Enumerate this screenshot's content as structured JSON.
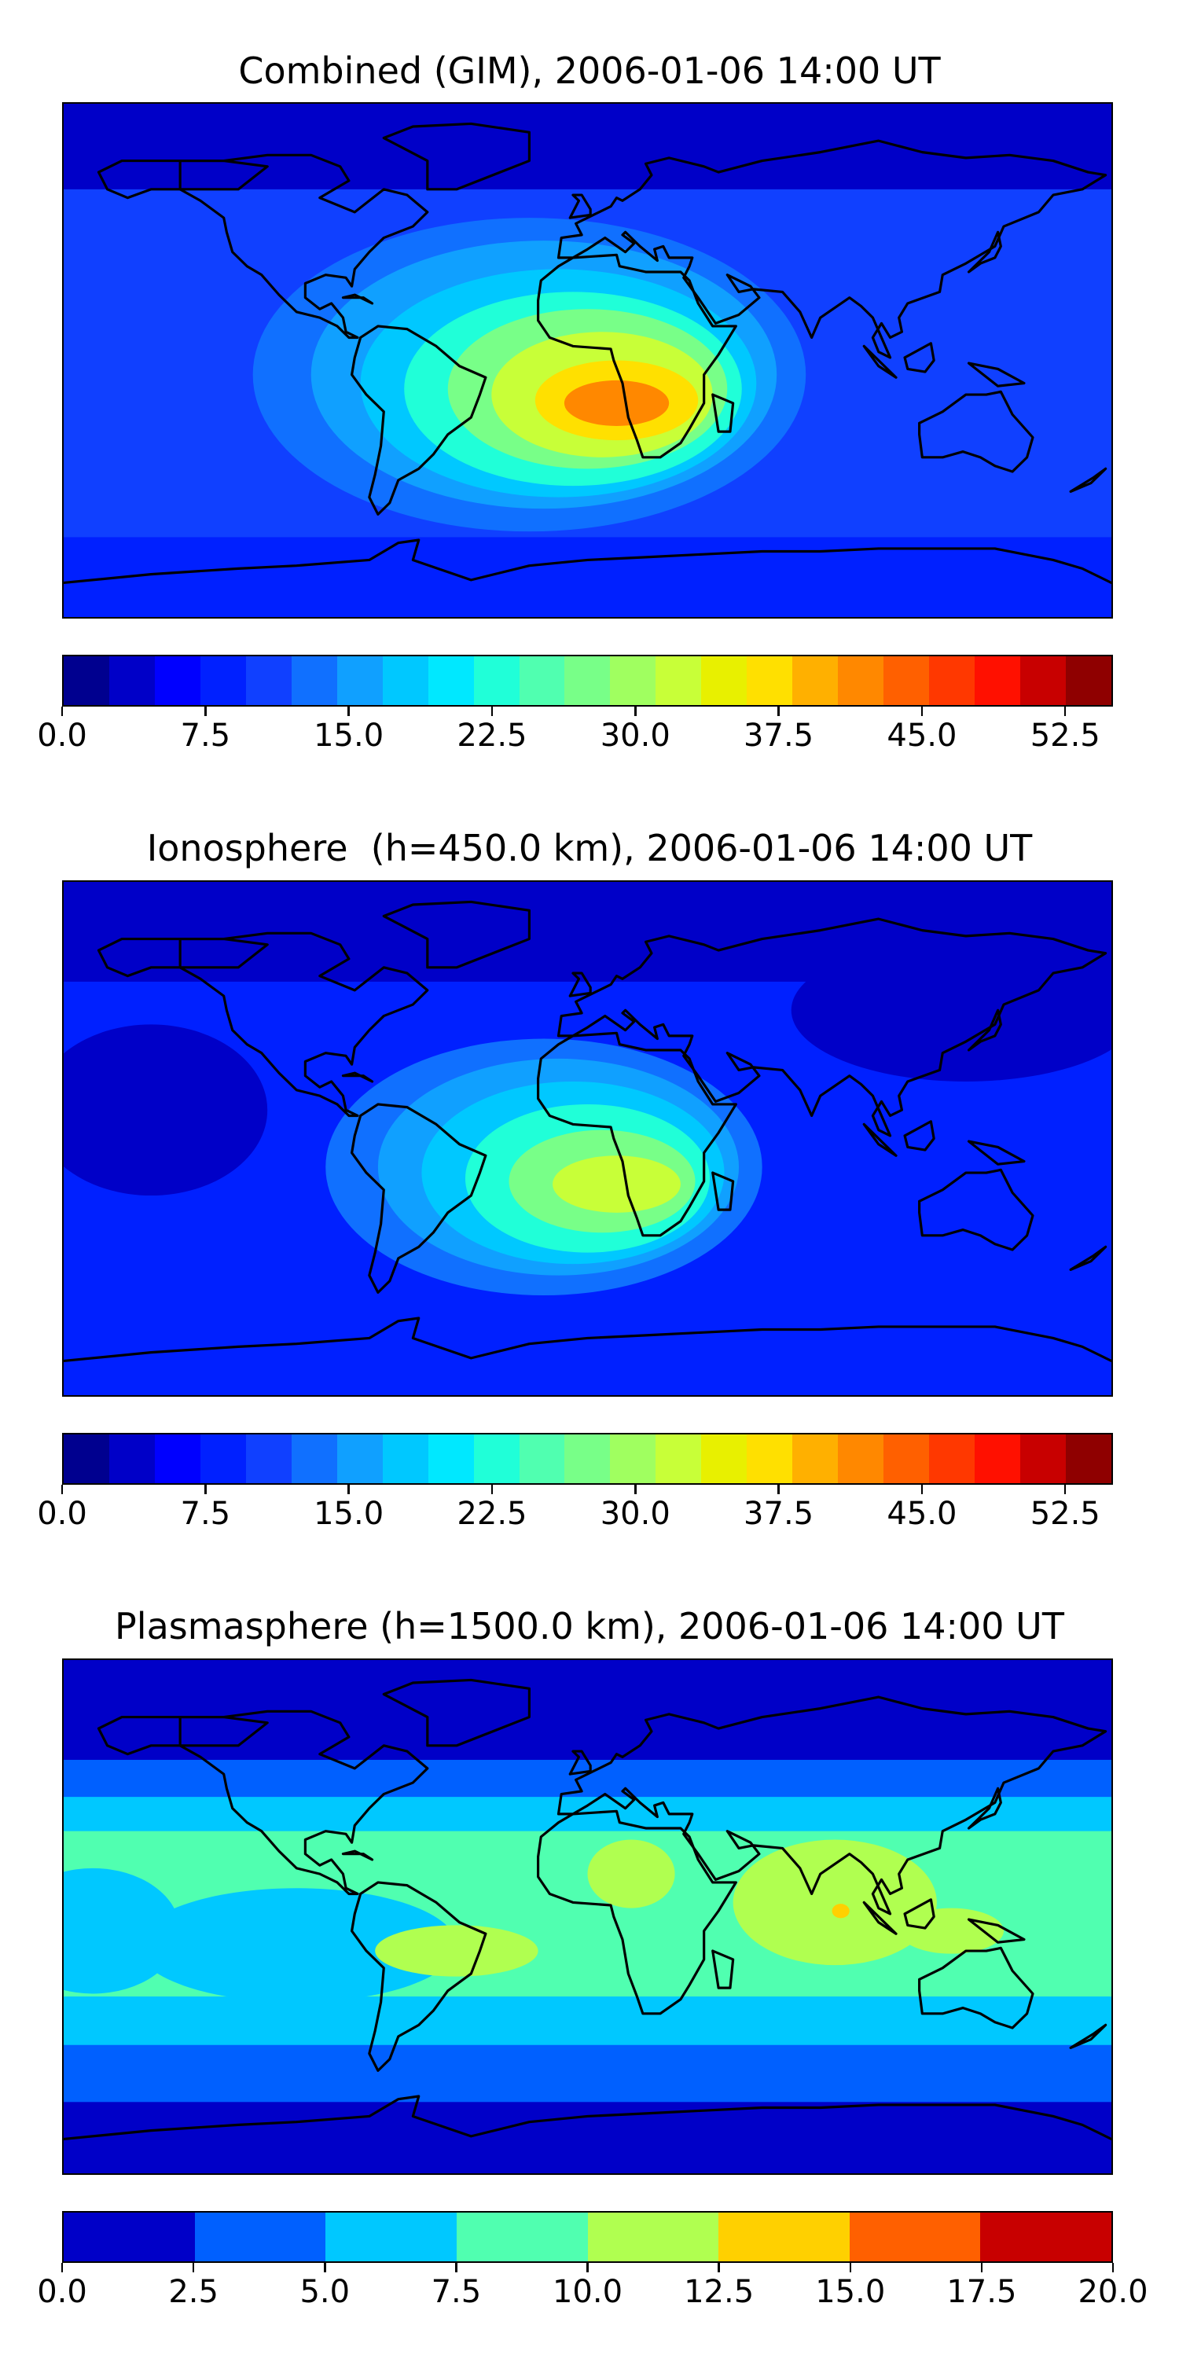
{
  "panels": [
    {
      "title": "Combined (GIM), 2006-01-06 14:00 UT",
      "colorbar": {
        "min": 0.0,
        "max": 55.0,
        "step": 2.5,
        "colors": [
          "#00008f",
          "#0000c8",
          "#0000ff",
          "#0020ff",
          "#1040ff",
          "#1070ff",
          "#10a0ff",
          "#00c8ff",
          "#00e8ff",
          "#20ffd8",
          "#50ffb0",
          "#78ff88",
          "#a0ff60",
          "#c8ff38",
          "#e8f000",
          "#ffe000",
          "#ffb000",
          "#ff8800",
          "#ff6000",
          "#ff3800",
          "#ff1000",
          "#c80000",
          "#8f0000"
        ],
        "tick_labels": [
          "0.0",
          "7.5",
          "15.0",
          "22.5",
          "30.0",
          "37.5",
          "45.0",
          "52.5"
        ],
        "tick_values": [
          0.0,
          7.5,
          15.0,
          22.5,
          30.0,
          37.5,
          45.0,
          52.5
        ]
      },
      "map": {
        "background": "#1040ff",
        "layers": [
          {
            "kind": "band",
            "lat": [
              60,
              90
            ],
            "color": "#0000c8"
          },
          {
            "kind": "band",
            "lat": [
              -90,
              -62
            ],
            "color": "#0020ff"
          },
          {
            "kind": "blob",
            "lon": -20,
            "lat": -5,
            "rx": 95,
            "ry": 55,
            "color": "#1070ff"
          },
          {
            "kind": "blob",
            "lon": -15,
            "lat": -5,
            "rx": 80,
            "ry": 47,
            "color": "#10a0ff"
          },
          {
            "kind": "blob",
            "lon": -10,
            "lat": -8,
            "rx": 68,
            "ry": 40,
            "color": "#00c8ff"
          },
          {
            "kind": "blob",
            "lon": -5,
            "lat": -10,
            "rx": 58,
            "ry": 34,
            "color": "#20ffd8"
          },
          {
            "kind": "blob",
            "lon": 0,
            "lat": -10,
            "rx": 48,
            "ry": 28,
            "color": "#78ff88"
          },
          {
            "kind": "blob",
            "lon": 5,
            "lat": -12,
            "rx": 38,
            "ry": 22,
            "color": "#c8ff38"
          },
          {
            "kind": "blob",
            "lon": 10,
            "lat": -14,
            "rx": 28,
            "ry": 14,
            "color": "#ffe000"
          },
          {
            "kind": "blob",
            "lon": 10,
            "lat": -15,
            "rx": 18,
            "ry": 8,
            "color": "#ff8800"
          }
        ]
      }
    },
    {
      "title": "Ionosphere  (h=450.0 km), 2006-01-06 14:00 UT",
      "colorbar": {
        "min": 0.0,
        "max": 55.0,
        "step": 2.5,
        "colors": [
          "#00008f",
          "#0000c8",
          "#0000ff",
          "#0020ff",
          "#1040ff",
          "#1070ff",
          "#10a0ff",
          "#00c8ff",
          "#00e8ff",
          "#20ffd8",
          "#50ffb0",
          "#78ff88",
          "#a0ff60",
          "#c8ff38",
          "#e8f000",
          "#ffe000",
          "#ffb000",
          "#ff8800",
          "#ff6000",
          "#ff3800",
          "#ff1000",
          "#c80000",
          "#8f0000"
        ],
        "tick_labels": [
          "0.0",
          "7.5",
          "15.0",
          "22.5",
          "30.0",
          "37.5",
          "45.0",
          "52.5"
        ],
        "tick_values": [
          0.0,
          7.5,
          15.0,
          22.5,
          30.0,
          37.5,
          45.0,
          52.5
        ]
      },
      "map": {
        "background": "#0020ff",
        "layers": [
          {
            "kind": "band",
            "lat": [
              55,
              90
            ],
            "color": "#0000c8"
          },
          {
            "kind": "blob",
            "lon": 130,
            "lat": 45,
            "rx": 60,
            "ry": 25,
            "color": "#0000c8"
          },
          {
            "kind": "blob",
            "lon": -150,
            "lat": 10,
            "rx": 40,
            "ry": 30,
            "color": "#0000c8"
          },
          {
            "kind": "blob",
            "lon": -15,
            "lat": -10,
            "rx": 75,
            "ry": 45,
            "color": "#1070ff"
          },
          {
            "kind": "blob",
            "lon": -10,
            "lat": -10,
            "rx": 62,
            "ry": 38,
            "color": "#10a0ff"
          },
          {
            "kind": "blob",
            "lon": -5,
            "lat": -12,
            "rx": 52,
            "ry": 32,
            "color": "#00c8ff"
          },
          {
            "kind": "blob",
            "lon": 0,
            "lat": -14,
            "rx": 42,
            "ry": 26,
            "color": "#20ffd8"
          },
          {
            "kind": "blob",
            "lon": 5,
            "lat": -15,
            "rx": 32,
            "ry": 18,
            "color": "#78ff88"
          },
          {
            "kind": "blob",
            "lon": 10,
            "lat": -16,
            "rx": 22,
            "ry": 10,
            "color": "#c8ff38"
          }
        ]
      }
    },
    {
      "title": "Plasmasphere (h=1500.0 km), 2006-01-06 14:00 UT",
      "colorbar": {
        "min": 0.0,
        "max": 20.0,
        "step": 2.5,
        "colors": [
          "#0000c8",
          "#0060ff",
          "#00c8ff",
          "#50ffb0",
          "#b0ff50",
          "#ffd000",
          "#ff6000",
          "#c80000"
        ],
        "tick_labels": [
          "0.0",
          "2.5",
          "5.0",
          "7.5",
          "10.0",
          "12.5",
          "15.0",
          "17.5",
          "20.0"
        ],
        "tick_values": [
          0.0,
          2.5,
          5.0,
          7.5,
          10.0,
          12.5,
          15.0,
          17.5,
          20.0
        ]
      },
      "map": {
        "background": "#0000c8",
        "layers": [
          {
            "kind": "band",
            "lat": [
              -65,
              55
            ],
            "color": "#0060ff"
          },
          {
            "kind": "band",
            "lat": [
              -45,
              42
            ],
            "color": "#00c8ff"
          },
          {
            "kind": "band",
            "lat": [
              -28,
              30
            ],
            "color": "#50ffb0"
          },
          {
            "kind": "blob",
            "lon": -100,
            "lat": -10,
            "rx": 55,
            "ry": 20,
            "color": "#00c8ff"
          },
          {
            "kind": "blob",
            "lon": -170,
            "lat": -5,
            "rx": 30,
            "ry": 22,
            "color": "#00c8ff"
          },
          {
            "kind": "blob",
            "lon": -45,
            "lat": -12,
            "rx": 28,
            "ry": 9,
            "color": "#b0ff50"
          },
          {
            "kind": "blob",
            "lon": 15,
            "lat": 15,
            "rx": 15,
            "ry": 12,
            "color": "#b0ff50"
          },
          {
            "kind": "blob",
            "lon": 85,
            "lat": 5,
            "rx": 35,
            "ry": 22,
            "color": "#b0ff50"
          },
          {
            "kind": "blob",
            "lon": 125,
            "lat": -5,
            "rx": 18,
            "ry": 8,
            "color": "#b0ff50"
          },
          {
            "kind": "blob",
            "lon": 87,
            "lat": 2,
            "rx": 3,
            "ry": 2.5,
            "color": "#ffd000"
          }
        ]
      }
    }
  ]
}
